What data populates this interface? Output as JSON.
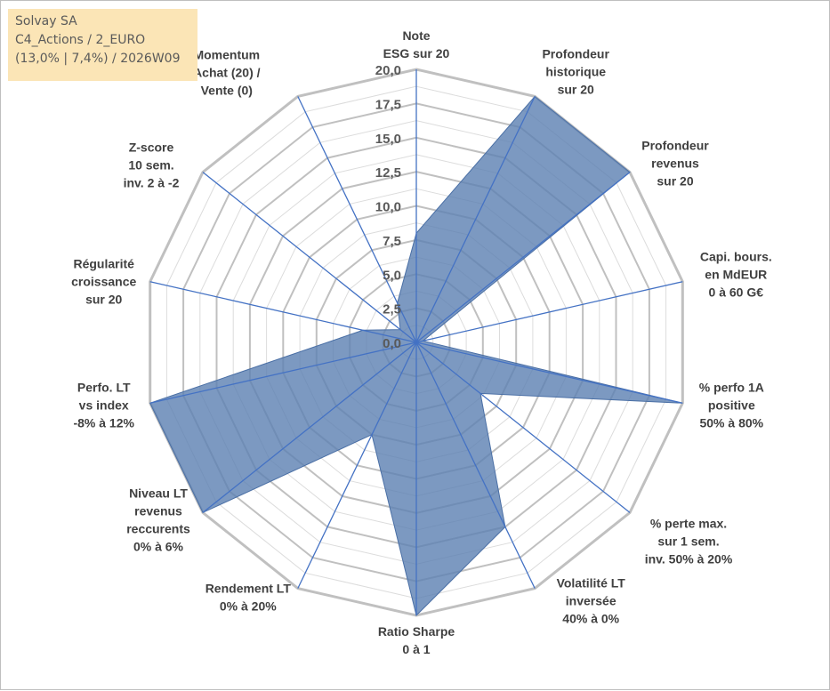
{
  "info_box": {
    "line1": "Solvay SA",
    "line2": "C4_Actions / 2_EURO",
    "line3": "(13,0% | 7,4%) / 2026W09"
  },
  "chart_data": {
    "type": "radar",
    "rmin": 0,
    "rmax": 20,
    "tick_labels": [
      "0,0",
      "2,5",
      "5,0",
      "7,5",
      "10,0",
      "12,5",
      "15,0",
      "17,5",
      "20,0"
    ],
    "categories": [
      [
        "Note",
        "ESG sur 20"
      ],
      [
        "Profondeur",
        "historique",
        "sur 20"
      ],
      [
        "Profondeur",
        "revenus",
        "sur 20"
      ],
      [
        "Capi. bours.",
        "en MdEUR",
        "0 à 60 G€"
      ],
      [
        "% perfo 1A",
        "positive",
        "50% à 80%"
      ],
      [
        "% perte max.",
        "sur 1 sem.",
        "inv. 50% à 20%"
      ],
      [
        "Volatilité LT",
        "inversée",
        "40% à 0%"
      ],
      [
        "Ratio Sharpe",
        "0 à 1"
      ],
      [
        "Rendement LT",
        "0% à 20%"
      ],
      [
        "Niveau LT",
        "revenus",
        "reccurents",
        "0% à 6%"
      ],
      [
        "Perfo. LT",
        "vs index",
        "-8% à 12%"
      ],
      [
        "Régularité",
        "croissance",
        "sur 20"
      ],
      [
        "Z-score",
        "10 sem.",
        "inv. 2 à -2"
      ],
      [
        "Momentum",
        "Achat (20) /",
        "Vente (0)"
      ]
    ],
    "series": [
      {
        "values": [
          8.0,
          20.0,
          20.0,
          0.5,
          20.0,
          6.0,
          15.0,
          20.0,
          7.5,
          20.0,
          20.0,
          4.0,
          1.5,
          3.2
        ]
      }
    ],
    "colors": {
      "fill": "#5b80b2",
      "fill_opacity": 0.8,
      "line": "#4a6fa5",
      "axis": "#4472c4",
      "grid_major": "#c0c0c0",
      "grid_minor": "#dcdcdc",
      "text": "#404040"
    },
    "grid": true,
    "legend": "none"
  }
}
